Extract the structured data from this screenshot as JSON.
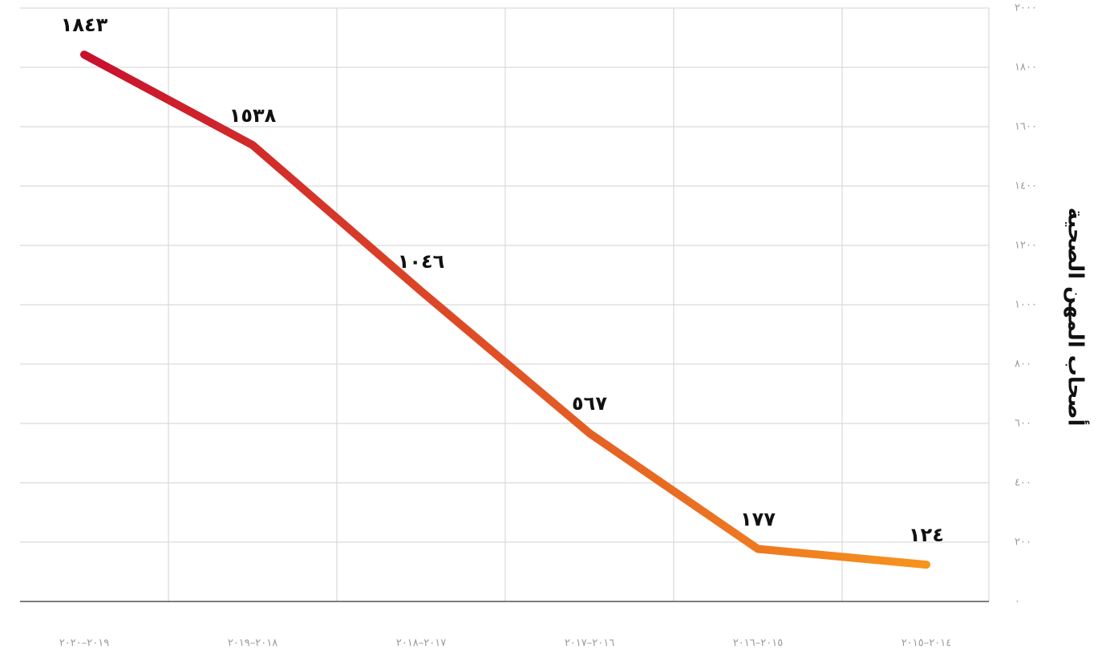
{
  "chart_data": {
    "type": "line",
    "y_axis_label": "أصحاب المهن الصحية",
    "categories": [
      "٢٠١٩–٢٠٢٠",
      "٢٠١٨–٢٠١٩",
      "٢٠١٧–٢٠١٨",
      "٢٠١٦–٢٠١٧",
      "٢٠١٥–٢٠١٦",
      "٢٠١٤–٢٠١٥"
    ],
    "values": [
      1843,
      1538,
      1046,
      567,
      177,
      124
    ],
    "value_labels": [
      "١٨٤٣",
      "١٥٣٨",
      "١٠٤٦",
      "٥٦٧",
      "١٧٧",
      "١٢٤"
    ],
    "gradient": [
      "#c8102e",
      "#f7941d"
    ],
    "ylim": [
      0,
      2000
    ],
    "yticks": [
      {
        "value": 0,
        "label": "٠"
      },
      {
        "value": 200,
        "label": "٢٠٠"
      },
      {
        "value": 400,
        "label": "٤٠٠"
      },
      {
        "value": 600,
        "label": "٦٠٠"
      },
      {
        "value": 800,
        "label": "٨٠٠"
      },
      {
        "value": 1000,
        "label": "١٠٠٠"
      },
      {
        "value": 1200,
        "label": "١٢٠٠"
      },
      {
        "value": 1400,
        "label": "١٤٠٠"
      },
      {
        "value": 1600,
        "label": "١٦٠٠"
      },
      {
        "value": 1800,
        "label": "١٨٠٠"
      },
      {
        "value": 2000,
        "label": "٢٠٠٠"
      }
    ],
    "y_axis_side": "right",
    "grid": true
  }
}
